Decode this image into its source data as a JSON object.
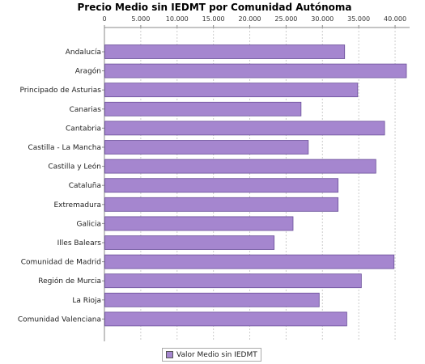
{
  "chart_data": {
    "type": "bar",
    "orientation": "horizontal",
    "title": "Precio Medio sin IEDMT por Comunidad Autónoma",
    "categories": [
      "Andalucía",
      "Aragón",
      "Principado de Asturias",
      "Canarias",
      "Cantabria",
      "Castilla - La Mancha",
      "Castilla y León",
      "Cataluña",
      "Extremadura",
      "Galicia",
      "Illes Balears",
      "Comunidad de Madrid",
      "Región de Murcia",
      "La Rioja",
      "Comunidad Valenciana"
    ],
    "series": [
      {
        "name": "Valor Medio sin IEDMT",
        "values": [
          33000,
          41500,
          34800,
          27000,
          38500,
          28000,
          37300,
          32100,
          32100,
          25900,
          23300,
          39800,
          35300,
          29500,
          33300
        ]
      }
    ],
    "xlim": [
      0,
      42000
    ],
    "xticks": [
      0,
      5000,
      10000,
      15000,
      20000,
      25000,
      30000,
      35000,
      40000
    ],
    "xtick_labels": [
      "0",
      "5.000",
      "10.000",
      "15.000",
      "20.000",
      "25.000",
      "30.000",
      "35.000",
      "40.000"
    ],
    "xaxis_position": "top",
    "grid": "vertical dashed",
    "legend_position": "bottom-center",
    "colors": {
      "bar_fill": "#a586cf",
      "bar_stroke": "#6a4f99",
      "grid": "#cccccc",
      "axis": "#888888"
    }
  }
}
